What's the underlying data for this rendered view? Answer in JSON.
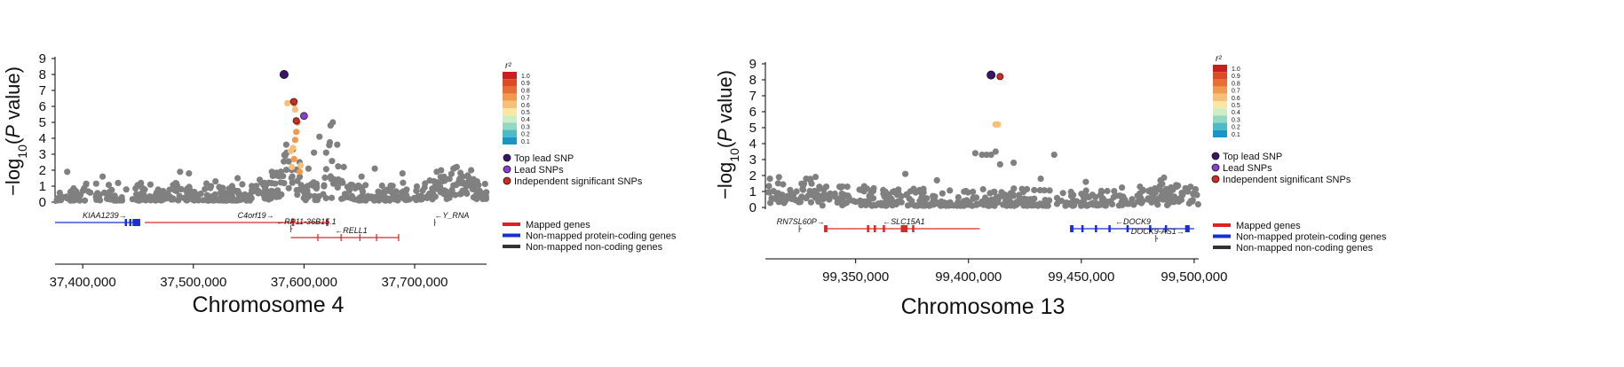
{
  "chart_data": [
    {
      "type": "scatter",
      "chromosome_label": "Chromosome 4",
      "ylabel": "−log10(P value)",
      "y_ticks": [
        "0",
        "1",
        "2",
        "3",
        "4",
        "5",
        "6",
        "7",
        "8",
        "9"
      ],
      "x_ticks": [
        {
          "value": 37400000,
          "label": "37,400,000"
        },
        {
          "value": 37500000,
          "label": "37,500,000"
        },
        {
          "value": 37600000,
          "label": "37,600,000"
        },
        {
          "value": 37700000,
          "label": "37,700,000"
        }
      ],
      "xlim": [
        37375000,
        37765000
      ],
      "ylim": [
        0,
        9
      ],
      "background_seed": 11,
      "background_count": 520,
      "background_peaks": [
        {
          "x": 37585000,
          "width": 12000,
          "height": 3.0
        },
        {
          "x": 37625000,
          "width": 6000,
          "height": 3.5
        },
        {
          "x": 37735000,
          "width": 25000,
          "height": 1.2
        }
      ],
      "background_extra": [
        [
          37386000,
          1.9
        ],
        [
          37403000,
          1.1
        ],
        [
          37418000,
          1.6
        ],
        [
          37432000,
          1.2
        ],
        [
          37488000,
          1.9
        ],
        [
          37496000,
          1.8
        ],
        [
          37520000,
          1.3
        ],
        [
          37540000,
          1.5
        ],
        [
          37560000,
          1.4
        ],
        [
          37571000,
          1.9
        ],
        [
          37583000,
          2.9
        ],
        [
          37584000,
          3.6
        ],
        [
          37590000,
          3.3
        ],
        [
          37596000,
          2.5
        ],
        [
          37604000,
          2.1
        ],
        [
          37609000,
          3.1
        ],
        [
          37614000,
          4.1
        ],
        [
          37620000,
          3.1
        ],
        [
          37624000,
          4.8
        ],
        [
          37626000,
          5.0
        ],
        [
          37630000,
          3.6
        ],
        [
          37636000,
          2.2
        ],
        [
          37652000,
          1.6
        ],
        [
          37664000,
          2.1
        ],
        [
          37689000,
          1.8
        ],
        [
          37720000,
          1.9
        ],
        [
          37738000,
          2.2
        ],
        [
          37751000,
          2.0
        ]
      ],
      "colored_points": [
        {
          "x": 37585000,
          "y": 6.2,
          "r2": 0.6
        },
        {
          "x": 37590000,
          "y": 6.3,
          "r2": 0.9
        },
        {
          "x": 37591000,
          "y": 6.2,
          "r2": 0.8
        },
        {
          "x": 37592000,
          "y": 5.8,
          "r2": 0.6
        },
        {
          "x": 37593000,
          "y": 5.1,
          "r2": 0.9
        },
        {
          "x": 37594000,
          "y": 5.0,
          "r2": 0.8
        },
        {
          "x": 37593000,
          "y": 4.4,
          "r2": 0.7
        },
        {
          "x": 37592000,
          "y": 3.9,
          "r2": 0.7
        },
        {
          "x": 37590000,
          "y": 3.4,
          "r2": 0.6
        },
        {
          "x": 37588000,
          "y": 3.2,
          "r2": 0.6
        },
        {
          "x": 37591000,
          "y": 2.7,
          "r2": 0.7
        },
        {
          "x": 37589000,
          "y": 2.2,
          "r2": 0.6
        },
        {
          "x": 37596000,
          "y": 1.9,
          "r2": 0.7
        },
        {
          "x": 37597000,
          "y": 2.3,
          "r2": 0.6
        }
      ],
      "top_lead_snp": {
        "x": 37582000,
        "y": 8.0
      },
      "lead_snps": [
        {
          "x": 37600000,
          "y": 5.4
        }
      ],
      "independent_snps": [
        {
          "x": 37591000,
          "y": 6.3
        },
        {
          "x": 37593000,
          "y": 5.1
        }
      ],
      "genes": [
        {
          "label": "KIAA1239→",
          "start": 37375000,
          "end": 37450000,
          "color": "#1a2fd1",
          "row": 0,
          "labelAt": 37400000,
          "exons": [
            [
              37438000,
              37440000
            ],
            [
              37442000,
              37444000
            ],
            [
              37445000,
              37452000
            ]
          ]
        },
        {
          "label": "C4orf19→",
          "start": 37456000,
          "end": 37622000,
          "color": "#d42a2a",
          "row": 0,
          "labelAt": 37540000,
          "exons": [
            [
              37589000,
              37591000
            ],
            [
              37620000,
              37622000
            ]
          ]
        },
        {
          "label": "←Y_RNA",
          "start": 37718000,
          "end": 37719000,
          "color": "#555555",
          "row": 0,
          "labelAt": 37718000,
          "exons": []
        },
        {
          "label": "←RP11-36B15.1",
          "start": 37588000,
          "end": 37589500,
          "color": "#555555",
          "row": 1,
          "labelAt": 37575000,
          "exons": []
        },
        {
          "label": "←RELL1",
          "start": 37588000,
          "end": 37686000,
          "color": "#d42a2a",
          "row": 2,
          "labelAt": 37628000,
          "exons": [
            [
              37612000,
              37613000
            ],
            [
              37633000,
              37634000
            ],
            [
              37650000,
              37651000
            ],
            [
              37665000,
              37666000
            ],
            [
              37685000,
              37686000
            ]
          ]
        }
      ]
    },
    {
      "type": "scatter",
      "chromosome_label": "Chromosome 13",
      "ylabel": "−log10(P value)",
      "y_ticks": [
        "0",
        "1",
        "2",
        "3",
        "4",
        "5",
        "6",
        "7",
        "8",
        "9"
      ],
      "x_ticks": [
        {
          "value": 99350000,
          "label": "99,350,000"
        },
        {
          "value": 99400000,
          "label": "99,400,000"
        },
        {
          "value": 99450000,
          "label": "99,450,000"
        },
        {
          "value": 99500000,
          "label": "99,500,000"
        }
      ],
      "xlim": [
        99310000,
        99502000
      ],
      "ylim": [
        0,
        9
      ],
      "background_seed": 29,
      "background_count": 480,
      "background_peaks": [
        {
          "x": 99330000,
          "width": 20000,
          "height": 0.9
        },
        {
          "x": 99485000,
          "width": 15000,
          "height": 0.7
        }
      ],
      "background_extra": [
        [
          99312000,
          1.8
        ],
        [
          99316000,
          1.9
        ],
        [
          99330000,
          1.7
        ],
        [
          99337000,
          1.3
        ],
        [
          99358000,
          1.2
        ],
        [
          99372000,
          2.1
        ],
        [
          99386000,
          1.7
        ],
        [
          99403000,
          3.4
        ],
        [
          99406000,
          3.3
        ],
        [
          99408000,
          3.3
        ],
        [
          99410000,
          3.3
        ],
        [
          99412000,
          3.5
        ],
        [
          99414000,
          2.7
        ],
        [
          99420000,
          2.8
        ],
        [
          99432000,
          1.8
        ],
        [
          99438000,
          3.3
        ],
        [
          99452000,
          1.6
        ],
        [
          99476000,
          1.3
        ],
        [
          99492000,
          1.4
        ],
        [
          99497000,
          1.1
        ]
      ],
      "colored_points": [
        {
          "x": 99412000,
          "y": 5.2,
          "r2": 0.6
        },
        {
          "x": 99413000,
          "y": 5.2,
          "r2": 0.6
        }
      ],
      "top_lead_snp": {
        "x": 99410000,
        "y": 8.3
      },
      "lead_snps": [],
      "independent_snps": [
        {
          "x": 99414000,
          "y": 8.2
        }
      ],
      "genes": [
        {
          "label": "RN7SL60P→",
          "start": 99325000,
          "end": 99326000,
          "color": "#555555",
          "row": 0,
          "labelAt": 99315000,
          "exons": []
        },
        {
          "label": "←SLC15A1",
          "start": 99336000,
          "end": 99405000,
          "color": "#d42a2a",
          "row": 0,
          "labelAt": 99362000,
          "exons": [
            [
              99336000,
              99337500
            ],
            [
              99355000,
              99356000
            ],
            [
              99358000,
              99359000
            ],
            [
              99362000,
              99363000
            ],
            [
              99370000,
              99373000
            ],
            [
              99375000,
              99376000
            ]
          ]
        },
        {
          "label": "←DOCK9",
          "start": 99445000,
          "end": 99500000,
          "color": "#1a2fd1",
          "row": 0,
          "labelAt": 99465000,
          "exons": [
            [
              99445000,
              99446500
            ],
            [
              99450000,
              99451000
            ],
            [
              99456000,
              99457000
            ],
            [
              99462000,
              99463000
            ],
            [
              99470000,
              99471000
            ],
            [
              99480000,
              99481000
            ],
            [
              99487000,
              99488000
            ],
            [
              99496000,
              99498000
            ]
          ]
        },
        {
          "label": "DOCK9-AS1→",
          "start": 99483000,
          "end": 99484000,
          "color": "#555555",
          "row": 1,
          "labelAt": 99472000,
          "exons": []
        }
      ]
    }
  ],
  "r2_legend": {
    "title": "r²",
    "levels": [
      {
        "label": "1.0",
        "color": "#c81f1f"
      },
      {
        "label": "0.9",
        "color": "#dc4a28"
      },
      {
        "label": "0.8",
        "color": "#e76f33"
      },
      {
        "label": "0.7",
        "color": "#f09a4e"
      },
      {
        "label": "0.6",
        "color": "#f6c07a"
      },
      {
        "label": "0.5",
        "color": "#fbe7a3"
      },
      {
        "label": "0.4",
        "color": "#cdeec4"
      },
      {
        "label": "0.3",
        "color": "#92d8c2"
      },
      {
        "label": "0.2",
        "color": "#4dbac7"
      },
      {
        "label": "0.1",
        "color": "#1a95c6"
      }
    ]
  },
  "snp_legend": [
    {
      "label": "Top lead SNP",
      "color": "#3b1470"
    },
    {
      "label": "Lead SNPs",
      "color": "#8a3fd1"
    },
    {
      "label": "Independent significant SNPs",
      "color": "#d42a1f"
    }
  ],
  "gene_legend": [
    {
      "label": "Mapped genes",
      "color": "#e01f1f"
    },
    {
      "label": "Non-mapped protein-coding genes",
      "color": "#1a2fd1"
    },
    {
      "label": "Non-mapped non-coding genes",
      "color": "#333333"
    }
  ],
  "colors": {
    "background_point": "#808080"
  }
}
